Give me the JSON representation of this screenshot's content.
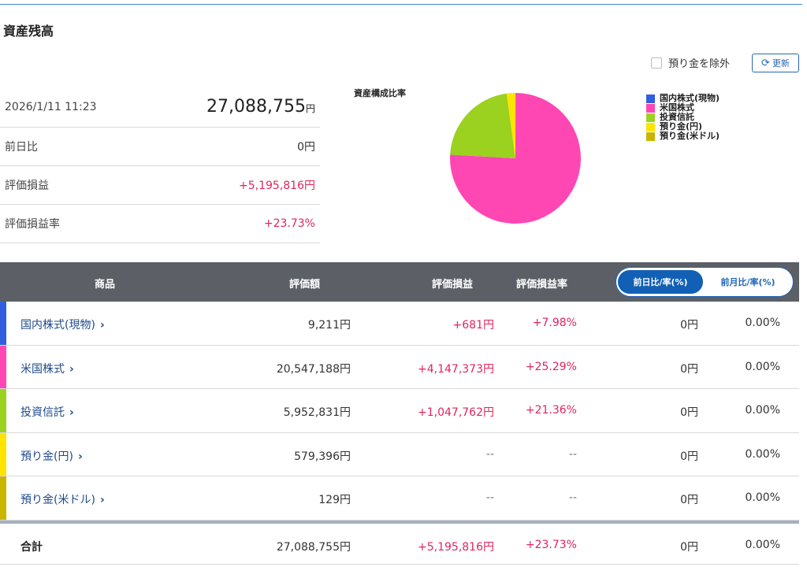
{
  "page": {
    "title": "資産残高"
  },
  "controls": {
    "exclude_label": "預り金を除外",
    "refresh_label": "更新"
  },
  "summary": {
    "timestamp": "2026/1/11 11:23",
    "total_value": "27,088,755",
    "yen_unit": "円",
    "rows": [
      {
        "label": "前日比",
        "value": "0円"
      },
      {
        "label": "評価損益",
        "value": "+5,195,816円"
      },
      {
        "label": "評価損益率",
        "value": "+23.73%"
      }
    ]
  },
  "chart_data": {
    "type": "pie",
    "title": "資産構成比率",
    "labels": [
      "国内株式(現物)",
      "米国株式",
      "投資信託",
      "預り金(円)",
      "預り金(米ドル)"
    ],
    "values": [
      9211,
      20547188,
      5952831,
      579396,
      129
    ],
    "colors": [
      "#2f5fe0",
      "#ff47b4",
      "#9bd11f",
      "#ffe400",
      "#c9b500"
    ]
  },
  "table": {
    "headers": {
      "product": "商品",
      "amount": "評価額",
      "gain": "評価損益",
      "rate": "評価損益率",
      "toggle_on": "前日比/率(%)",
      "toggle_off": "前月比/率(%)"
    },
    "rows": [
      {
        "name": "国内株式(現物)",
        "amount": "9,211円",
        "gain": "+681円",
        "rate": "+7.98%",
        "diff": "0円",
        "diff_rate": "0.00%",
        "color": "#2f5fe0"
      },
      {
        "name": "米国株式",
        "amount": "20,547,188円",
        "gain": "+4,147,373円",
        "rate": "+25.29%",
        "diff": "0円",
        "diff_rate": "0.00%",
        "color": "#ff47b4"
      },
      {
        "name": "投資信託",
        "amount": "5,952,831円",
        "gain": "+1,047,762円",
        "rate": "+21.36%",
        "diff": "0円",
        "diff_rate": "0.00%",
        "color": "#9bd11f"
      },
      {
        "name": "預り金(円)",
        "amount": "579,396円",
        "gain": "--",
        "rate": "--",
        "diff": "0円",
        "diff_rate": "0.00%",
        "color": "#ffe400"
      },
      {
        "name": "預り金(米ドル)",
        "amount": "129円",
        "gain": "--",
        "rate": "--",
        "diff": "0円",
        "diff_rate": "0.00%",
        "color": "#c9b500"
      }
    ],
    "total": {
      "name": "合計",
      "amount": "27,088,755円",
      "gain": "+5,195,816円",
      "rate": "+23.73%",
      "diff": "0円",
      "diff_rate": "0.00%"
    }
  }
}
